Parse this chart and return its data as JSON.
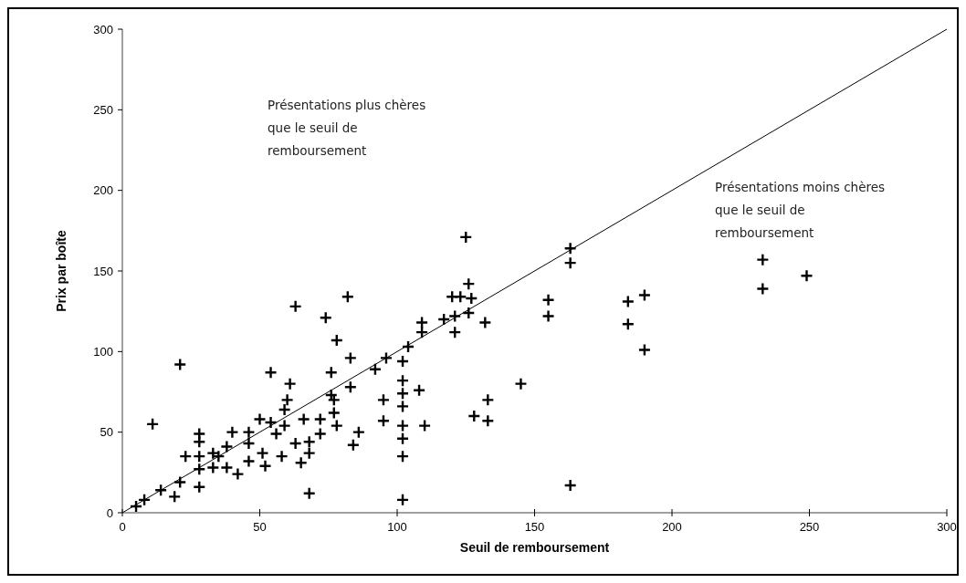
{
  "chart_data": {
    "type": "scatter",
    "xlabel": "Seuil de remboursement",
    "ylabel": "Prix par boîte",
    "xlim": [
      0,
      300
    ],
    "ylim": [
      0,
      300
    ],
    "xticks": [
      0,
      50,
      100,
      150,
      200,
      250,
      300
    ],
    "yticks": [
      0,
      50,
      100,
      150,
      200,
      250,
      300
    ],
    "grid": false,
    "annotations": [
      "Présentations plus chères que le seuil de remboursement",
      "Présentations moins chères que le seuil de remboursement"
    ],
    "series": [
      {
        "marker": "cross",
        "color": "#000000",
        "x": [
          5,
          8,
          14,
          19,
          21,
          11,
          21,
          23,
          28,
          28,
          28,
          28,
          28,
          33,
          33,
          35,
          38,
          38,
          40,
          42,
          46,
          46,
          46,
          50,
          51,
          52,
          54,
          54,
          56,
          58,
          59,
          59,
          60,
          61,
          63,
          63,
          65,
          66,
          68,
          68,
          68,
          72,
          72,
          74,
          76,
          76,
          77,
          78,
          77,
          78,
          82,
          83,
          83,
          84,
          86,
          92,
          95,
          95,
          96,
          102,
          102,
          102,
          102,
          102,
          102,
          102,
          102,
          104,
          108,
          109,
          109,
          110,
          117,
          120,
          121,
          121,
          123,
          125,
          126,
          126,
          127,
          128,
          132,
          133,
          133,
          145,
          155,
          155,
          163,
          163,
          163,
          184,
          184,
          190,
          190,
          233,
          233,
          249
        ],
        "values": [
          4,
          8,
          14,
          10,
          19,
          55,
          92,
          35,
          49,
          44,
          35,
          27,
          16,
          28,
          37,
          35,
          41,
          28,
          50,
          24,
          50,
          43,
          32,
          58,
          37,
          29,
          56,
          87,
          49,
          35,
          54,
          64,
          70,
          80,
          128,
          43,
          31,
          58,
          44,
          37,
          12,
          49,
          58,
          121,
          87,
          73,
          62,
          107,
          70,
          54,
          134,
          96,
          78,
          42,
          50,
          89,
          70,
          57,
          96,
          94,
          82,
          74,
          66,
          54,
          46,
          35,
          8,
          103,
          76,
          112,
          118,
          54,
          120,
          134,
          122,
          112,
          134,
          171,
          142,
          124,
          133,
          60,
          118,
          70,
          57,
          80,
          132,
          122,
          164,
          155,
          17,
          131,
          117,
          135,
          101,
          157,
          139,
          147
        ]
      },
      {
        "type": "line",
        "color": "#000000",
        "x": [
          0,
          300
        ],
        "values": [
          0,
          300
        ]
      }
    ]
  }
}
